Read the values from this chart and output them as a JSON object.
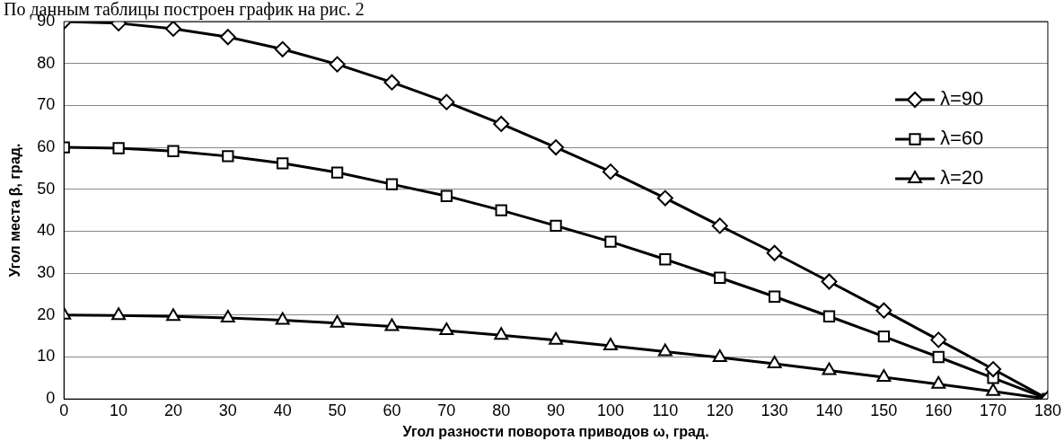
{
  "chart_data": {
    "type": "line",
    "annotations": [
      "По данным таблицы построен график на рис. 2"
    ],
    "xlabel": "Угол разности поворота приводов ω, град.",
    "ylabel": "Угол места β, град.",
    "x": [
      0,
      10,
      20,
      30,
      40,
      50,
      60,
      70,
      80,
      90,
      100,
      110,
      120,
      130,
      140,
      150,
      160,
      170,
      180
    ],
    "xlim": [
      0,
      180
    ],
    "xticks": [
      0,
      10,
      20,
      30,
      40,
      50,
      60,
      70,
      80,
      90,
      100,
      110,
      120,
      130,
      140,
      150,
      160,
      170,
      180
    ],
    "ylim": [
      0,
      90
    ],
    "yticks": [
      0,
      10,
      20,
      30,
      40,
      50,
      60,
      70,
      80,
      90
    ],
    "grid": "y",
    "legend": "top right",
    "series": [
      {
        "name": "λ=90",
        "color": "#000000",
        "marker": "diamond",
        "values": [
          90,
          89.6,
          88.3,
          86.3,
          83.4,
          79.8,
          75.5,
          70.8,
          65.6,
          60,
          54.2,
          47.9,
          41.3,
          34.8,
          28,
          21.1,
          14.1,
          7.1,
          0
        ]
      },
      {
        "name": "λ=60",
        "color": "#000000",
        "marker": "square",
        "values": [
          60,
          59.8,
          59.1,
          57.9,
          56.2,
          54,
          51.2,
          48.4,
          45,
          41.3,
          37.5,
          33.3,
          28.9,
          24.4,
          19.7,
          14.9,
          10,
          5,
          0
        ]
      },
      {
        "name": "λ=20",
        "color": "#000000",
        "marker": "triangle",
        "values": [
          20,
          19.9,
          19.7,
          19.3,
          18.8,
          18.1,
          17.3,
          16.3,
          15.2,
          14,
          12.7,
          11.3,
          9.9,
          8.4,
          6.8,
          5.2,
          3.5,
          1.8,
          0
        ]
      }
    ]
  }
}
